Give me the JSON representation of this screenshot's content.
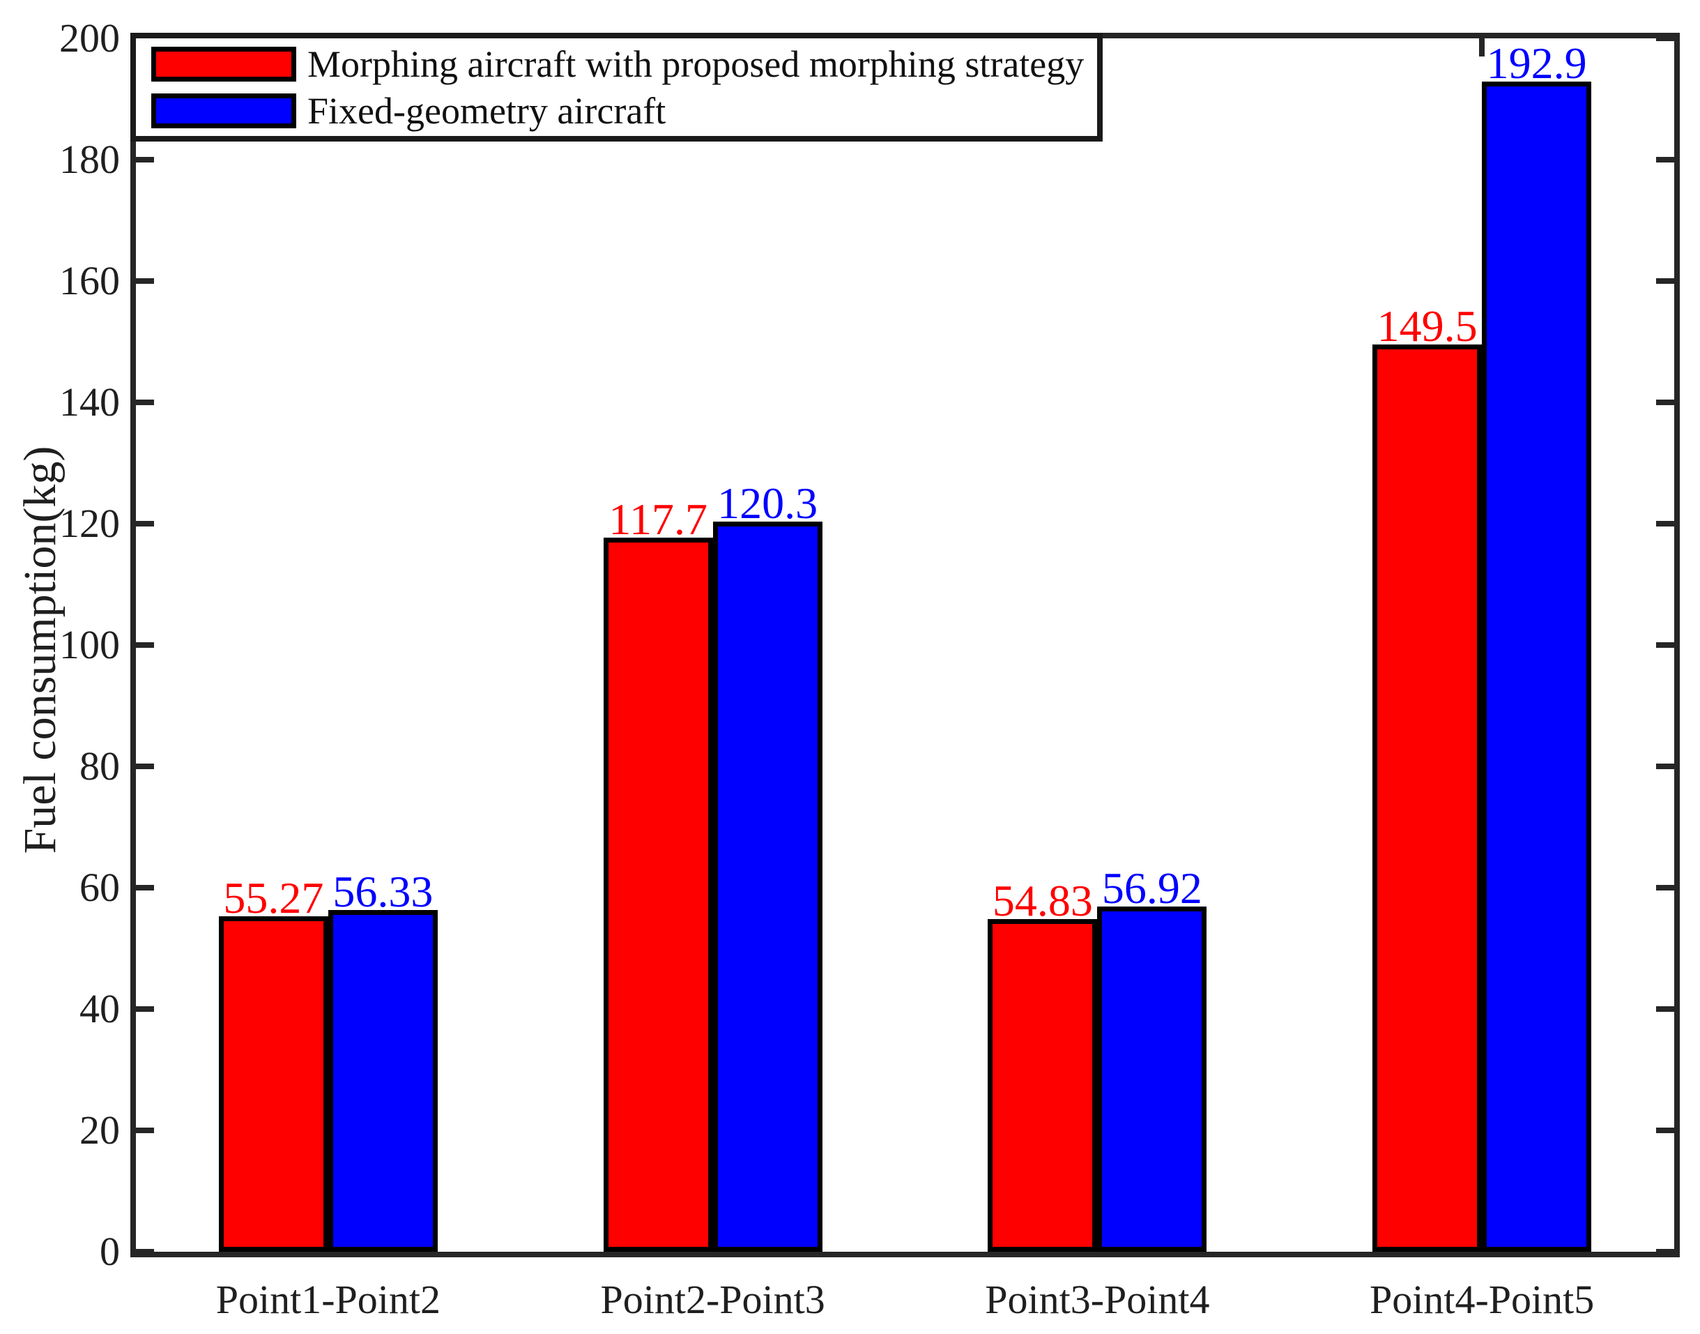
{
  "figure": {
    "background": "#FFFFFF",
    "axis_color": "#262626",
    "text_color": "#1F1F1F",
    "bar_edge_color": "#000000"
  },
  "chart_data": {
    "type": "bar",
    "title": "",
    "xlabel": "",
    "ylabel": "Fuel consumption(kg)",
    "categories": [
      "Point1-Point2",
      "Point2-Point3",
      "Point3-Point4",
      "Point4-Point5"
    ],
    "series": [
      {
        "name": "Morphing aircraft with proposed morphing strategy",
        "color": "#FF0000",
        "values": [
          55.27,
          117.7,
          54.83,
          149.5
        ],
        "value_labels": [
          "55.27",
          "117.7",
          "54.83",
          "149.5"
        ]
      },
      {
        "name": "Fixed-geometry aircraft",
        "color": "#0000FF",
        "values": [
          56.33,
          120.3,
          56.92,
          192.9
        ],
        "value_labels": [
          "56.33",
          "120.3",
          "56.92",
          "192.9"
        ]
      }
    ],
    "ylim": [
      0,
      200
    ],
    "ytick_step": 20,
    "yticks": [
      "0",
      "20",
      "40",
      "60",
      "80",
      "100",
      "120",
      "140",
      "160",
      "180",
      "200"
    ],
    "grid": false,
    "legend_position": "top-left",
    "value_labels_shown": true,
    "value_label_color_matches_series": true
  }
}
